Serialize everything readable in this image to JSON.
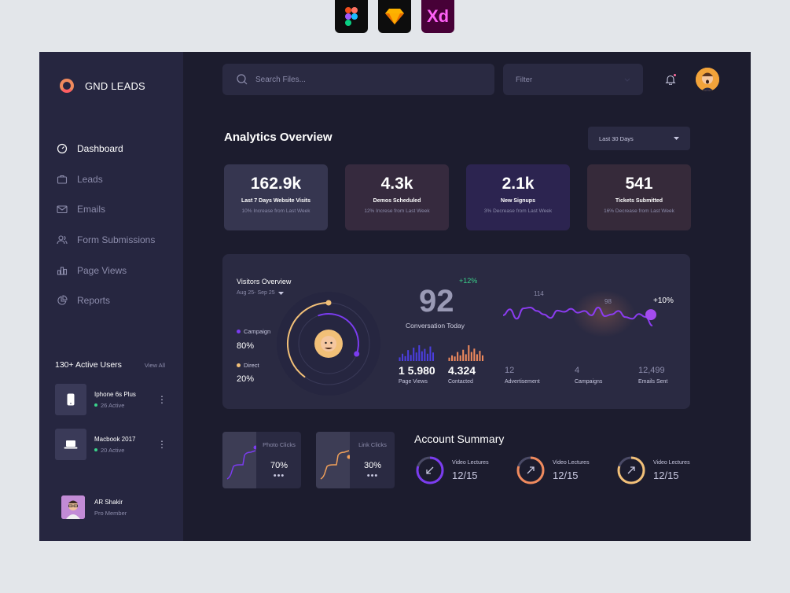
{
  "tools": {
    "xd_label": "Xd"
  },
  "brand": {
    "name": "GND LEADS"
  },
  "nav": {
    "items": [
      {
        "label": "Dashboard",
        "active": true,
        "icon": "gauge-icon"
      },
      {
        "label": "Leads",
        "active": false,
        "icon": "briefcase-icon"
      },
      {
        "label": "Emails",
        "active": false,
        "icon": "mail-icon"
      },
      {
        "label": "Form Submissions",
        "active": false,
        "icon": "users-icon"
      },
      {
        "label": "Page Views",
        "active": false,
        "icon": "bars-icon"
      },
      {
        "label": "Reports",
        "active": false,
        "icon": "pie-icon"
      }
    ]
  },
  "active_users": {
    "title": "130+ Active Users",
    "view_all": "View All",
    "devices": [
      {
        "name": "Iphone 6s Plus",
        "status": "26 Active"
      },
      {
        "name": "Macbook 2017",
        "status": "20 Active"
      }
    ]
  },
  "profile": {
    "name": "AR Shakir",
    "role": "Pro Member"
  },
  "header": {
    "search_placeholder": "Search Files...",
    "filter_label": "Filter"
  },
  "analytics": {
    "title": "Analytics Overview",
    "range": "Last 30 Days",
    "stats": [
      {
        "value": "162.9k",
        "label": "Last 7 Days Website Visits",
        "sub": "10% Increase from Last Week",
        "bg": "#363650"
      },
      {
        "value": "4.3k",
        "label": "Demos Scheduled",
        "sub": "12% Increse from Last Week",
        "bg": "#362a3e"
      },
      {
        "value": "2.1k",
        "label": "New Signups",
        "sub": "3% Decrease from Last Week",
        "bg": "#2c2450"
      },
      {
        "value": "541",
        "label": "Tickets Submitted",
        "sub": "16% Decrease from Last Week",
        "bg": "#362a3a"
      }
    ]
  },
  "visitors": {
    "title": "Visitors Overview",
    "date_range": "Aug 25- Sep 25",
    "campaign_label": "Campaign",
    "campaign_value": "80%",
    "direct_label": "Direct",
    "direct_value": "20%",
    "campaign_share": 0.8,
    "direct_share": 0.2
  },
  "conversation": {
    "value": "92",
    "growth": "+12%",
    "caption": "Conversation Today",
    "page_views_value": "1 5.980",
    "page_views_label": "Page Views",
    "contacted_value": "4.324",
    "contacted_label": "Contacted",
    "page_views_bars": [
      3,
      6,
      4,
      9,
      5,
      11,
      7,
      13,
      8,
      10,
      6,
      12,
      7
    ],
    "contacted_bars": [
      3,
      5,
      4,
      8,
      5,
      10,
      6,
      14,
      8,
      11,
      6,
      9,
      5
    ]
  },
  "trend": {
    "label_high": "114",
    "label_mid": "98",
    "percent": "+10%",
    "points": [
      58,
      44,
      66,
      42,
      40,
      48,
      56,
      64,
      47,
      50,
      43,
      52,
      48,
      58,
      40,
      60,
      56,
      48,
      62,
      66,
      55,
      62,
      82
    ]
  },
  "kpis": [
    {
      "value": "12",
      "label": "Advertisement"
    },
    {
      "value": "4",
      "label": "Campaigns"
    },
    {
      "value": "12,499",
      "label": "Emails Sent"
    }
  ],
  "clicks": [
    {
      "label": "Photo Clicks",
      "value": "70%",
      "more": "•••",
      "color": "#7b3cf0"
    },
    {
      "label": "Link Clicks",
      "value": "30%",
      "more": "•••",
      "color": "#f2a15a"
    }
  ],
  "account": {
    "title": "Account Summary",
    "items": [
      {
        "label": "Video Lectures",
        "value": "12/15",
        "color": "#7b3cf0",
        "icon": "arrow-down-left-icon"
      },
      {
        "label": "Video Lectures",
        "value": "12/15",
        "color": "#f08a5d",
        "icon": "arrow-up-right-icon"
      },
      {
        "label": "Video Lectures",
        "value": "12/15",
        "color": "#f2c078",
        "icon": "arrow-up-right-icon"
      }
    ],
    "progress": 0.8
  }
}
